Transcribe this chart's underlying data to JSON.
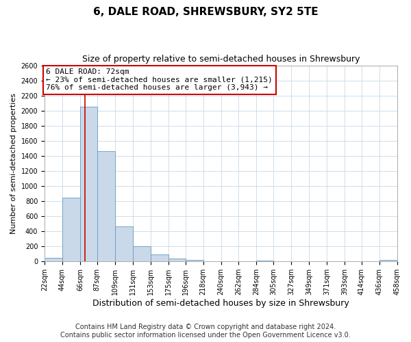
{
  "title": "6, DALE ROAD, SHREWSBURY, SY2 5TE",
  "subtitle": "Size of property relative to semi-detached houses in Shrewsbury",
  "xlabel": "Distribution of semi-detached houses by size in Shrewsbury",
  "ylabel": "Number of semi-detached properties",
  "bin_edges": [
    22,
    44,
    66,
    87,
    109,
    131,
    153,
    175,
    196,
    218,
    240,
    262,
    284,
    305,
    327,
    349,
    371,
    393,
    414,
    436,
    458
  ],
  "bin_counts": [
    50,
    850,
    2050,
    1460,
    470,
    200,
    95,
    40,
    20,
    0,
    0,
    0,
    15,
    0,
    0,
    0,
    0,
    0,
    0,
    20
  ],
  "bar_color": "#c9d9ea",
  "bar_edge_color": "#6699bb",
  "property_value": 72,
  "vline_color": "#cc0000",
  "annotation_text": "6 DALE ROAD: 72sqm\n← 23% of semi-detached houses are smaller (1,215)\n76% of semi-detached houses are larger (3,943) →",
  "annotation_box_color": "#ffffff",
  "annotation_box_edge": "#cc0000",
  "ylim": [
    0,
    2600
  ],
  "yticks": [
    0,
    200,
    400,
    600,
    800,
    1000,
    1200,
    1400,
    1600,
    1800,
    2000,
    2200,
    2400,
    2600
  ],
  "x_tick_labels": [
    "22sqm",
    "44sqm",
    "66sqm",
    "87sqm",
    "109sqm",
    "131sqm",
    "153sqm",
    "175sqm",
    "196sqm",
    "218sqm",
    "240sqm",
    "262sqm",
    "284sqm",
    "305sqm",
    "327sqm",
    "349sqm",
    "371sqm",
    "393sqm",
    "414sqm",
    "436sqm",
    "458sqm"
  ],
  "footer_line1": "Contains HM Land Registry data © Crown copyright and database right 2024.",
  "footer_line2": "Contains public sector information licensed under the Open Government Licence v3.0.",
  "background_color": "#ffffff",
  "grid_color": "#c8d8e8",
  "title_fontsize": 11,
  "subtitle_fontsize": 9,
  "xlabel_fontsize": 9,
  "ylabel_fontsize": 8,
  "tick_fontsize": 7,
  "annotation_fontsize": 8,
  "footer_fontsize": 7
}
